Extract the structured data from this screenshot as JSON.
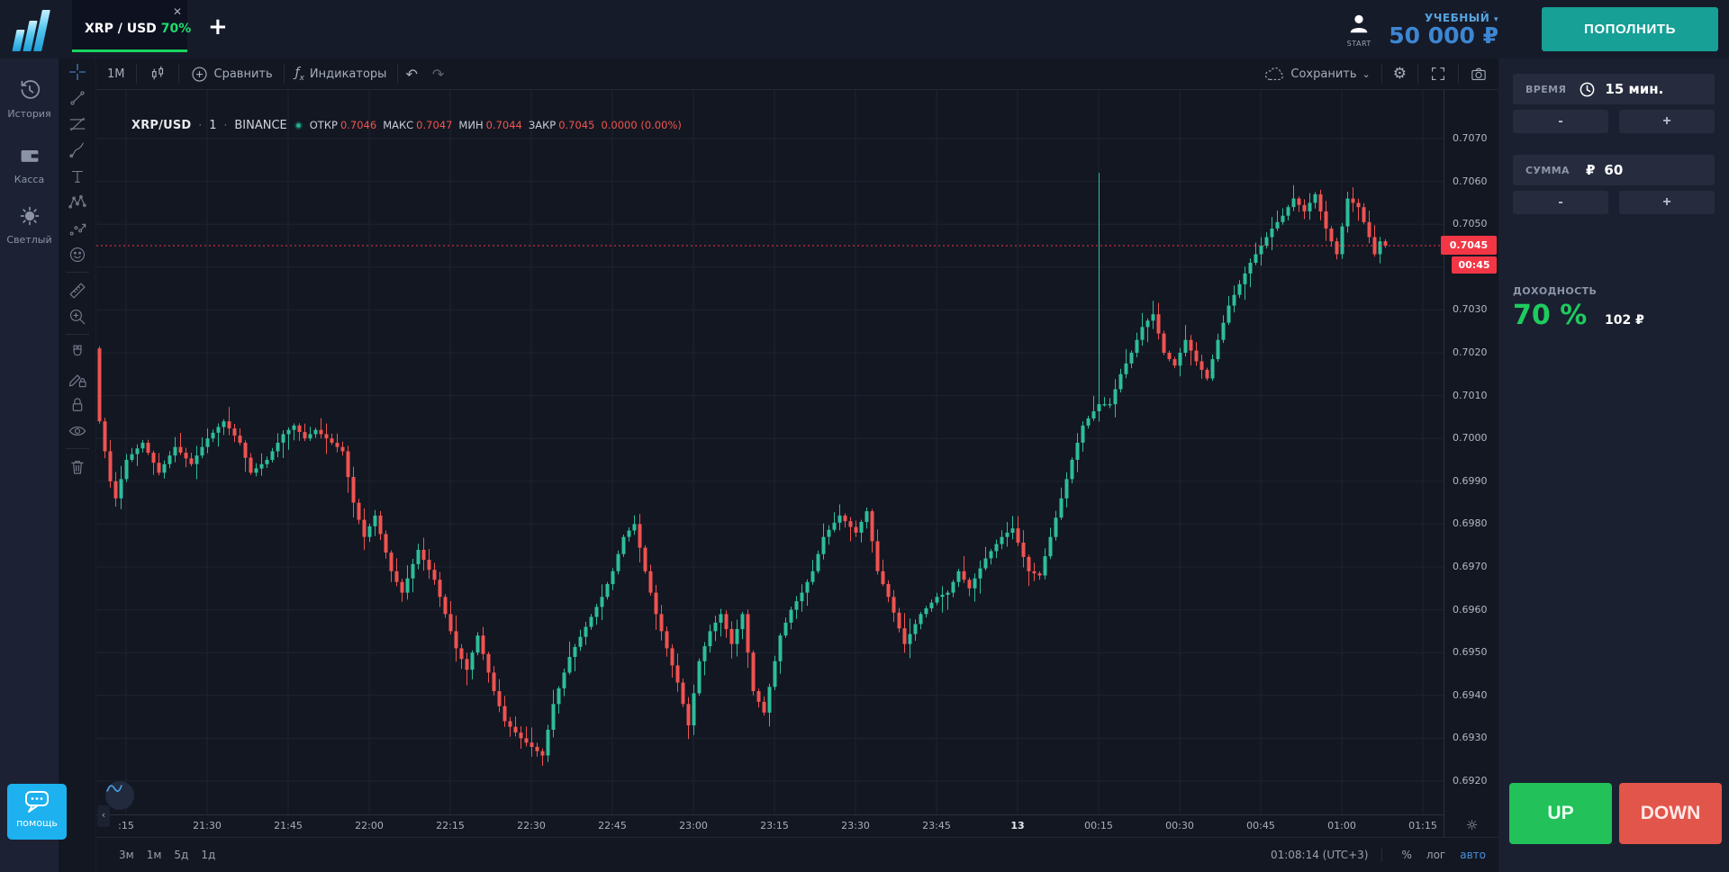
{
  "header": {
    "tab": {
      "symbol": "XRP / USD",
      "payout": "70%",
      "close": "✕"
    },
    "add_tab": "+",
    "account": {
      "avatar_label": "START",
      "type": "УЧЕБНЫЙ",
      "caret": "▾",
      "balance": "50 000 ₽"
    },
    "deposit_button": "ПОПОЛНИТЬ"
  },
  "sidebar": {
    "items": [
      {
        "label": "История",
        "icon": "history-icon"
      },
      {
        "label": "Касса",
        "icon": "wallet-icon"
      },
      {
        "label": "Светлый",
        "icon": "theme-icon"
      }
    ],
    "help": {
      "label": "помощь",
      "icon": "chat-icon"
    }
  },
  "chart": {
    "toolbar": {
      "interval": "1М",
      "compare": "Сравнить",
      "indicators": "Индикаторы",
      "undo": "↶",
      "redo": "↷",
      "save": "Сохранить",
      "save_caret": "⌄",
      "gear": "⚙"
    },
    "drawing_tools": [
      "crosshair",
      "trend-line",
      "fib-retracement",
      "brush",
      "text",
      "xabcd-pattern",
      "forecast",
      "emoji",
      "|",
      "ruler",
      "zoom-in",
      "|",
      "magnet",
      "drawing-lock",
      "lock",
      "eye",
      "|",
      "trash"
    ],
    "legend": {
      "symbol": "XRP/USD",
      "sep": "·",
      "interval": "1",
      "exchange": "BINANCE",
      "ohlc": {
        "o_label": "ОТКР",
        "o": "0.7046",
        "h_label": "МАКС",
        "h": "0.7047",
        "l_label": "МИН",
        "l": "0.7044",
        "c_label": "ЗАКР",
        "c": "0.7045",
        "change": "0.0000 (0.00%)"
      }
    },
    "collapse_arrow": "‹",
    "axis_gear": "☼",
    "bottom_bar": {
      "ranges": [
        "3м",
        "1м",
        "5д",
        "1д"
      ],
      "clock": "01:08:14 (UTC+3)",
      "percent": "%",
      "log": "лог",
      "auto": "авто"
    }
  },
  "trade_panel": {
    "time": {
      "label": "ВРЕМЯ",
      "value": "15 мин."
    },
    "amount": {
      "label": "СУММА",
      "currency": "₽",
      "value": "60"
    },
    "stepper": {
      "minus": "-",
      "plus": "+"
    },
    "payout": {
      "label": "ДОХОДНОСТЬ",
      "percent": "70 %",
      "profit": "102 ₽"
    },
    "up": "UP",
    "down": "DOWN"
  },
  "chart_data": {
    "type": "candlestick",
    "symbol": "XRP/USD",
    "exchange": "BINANCE",
    "interval_minutes": 1,
    "title": "XRP/USD · 1 · BINANCE",
    "time_ticks": [
      ":15",
      "21:30",
      "21:45",
      "22:00",
      "22:15",
      "22:30",
      "22:45",
      "23:00",
      "23:15",
      "23:30",
      "23:45",
      "13",
      "00:15",
      "00:30",
      "00:45",
      "01:00",
      "01:15"
    ],
    "price_ticks": [
      "0.7070",
      "0.7060",
      "0.7050",
      "0.7040",
      "0.7030",
      "0.7020",
      "0.7010",
      "0.7000",
      "0.6990",
      "0.6980",
      "0.6970",
      "0.6960",
      "0.6950",
      "0.6940",
      "0.6930",
      "0.6920"
    ],
    "ylim": [
      0.692,
      0.707
    ],
    "grid_step": 0.001,
    "current_price": 0.7045,
    "current_price_label": "0.7045",
    "countdown": "00:45",
    "start_time": "21:10",
    "end_time": "01:08",
    "candle_count": 239,
    "first_open": 0.7021,
    "spike": {
      "minute_index": 185,
      "high": 0.7062
    },
    "up_color": "#2ebd9b",
    "down_color": "#ef5350",
    "grid_color": "#1d2330",
    "price_line_color": "#f23645",
    "close_anchors": [
      [
        0,
        0.7004
      ],
      [
        2,
        0.699
      ],
      [
        3,
        0.6986
      ],
      [
        5,
        0.6995
      ],
      [
        8,
        0.6999
      ],
      [
        11,
        0.6992
      ],
      [
        14,
        0.6998
      ],
      [
        17,
        0.6994
      ],
      [
        20,
        0.7
      ],
      [
        23,
        0.7004
      ],
      [
        26,
        0.6999
      ],
      [
        28,
        0.6992
      ],
      [
        31,
        0.6995
      ],
      [
        34,
        0.7001
      ],
      [
        36,
        0.7003
      ],
      [
        38,
        0.7
      ],
      [
        40,
        0.7002
      ],
      [
        43,
        0.6999
      ],
      [
        45,
        0.6997
      ],
      [
        47,
        0.6985
      ],
      [
        49,
        0.6977
      ],
      [
        51,
        0.6982
      ],
      [
        54,
        0.6969
      ],
      [
        56,
        0.6964
      ],
      [
        59,
        0.6974
      ],
      [
        62,
        0.6967
      ],
      [
        64,
        0.6959
      ],
      [
        66,
        0.6951
      ],
      [
        68,
        0.6946
      ],
      [
        70,
        0.6954
      ],
      [
        73,
        0.6941
      ],
      [
        75,
        0.6934
      ],
      [
        78,
        0.693
      ],
      [
        80,
        0.6928
      ],
      [
        82,
        0.6926
      ],
      [
        84,
        0.6938
      ],
      [
        87,
        0.6949
      ],
      [
        90,
        0.6956
      ],
      [
        93,
        0.6963
      ],
      [
        95,
        0.6969
      ],
      [
        97,
        0.6977
      ],
      [
        99,
        0.698
      ],
      [
        101,
        0.6969
      ],
      [
        103,
        0.6959
      ],
      [
        105,
        0.6951
      ],
      [
        107,
        0.6943
      ],
      [
        109,
        0.6933
      ],
      [
        111,
        0.6948
      ],
      [
        113,
        0.6955
      ],
      [
        115,
        0.6959
      ],
      [
        117,
        0.6952
      ],
      [
        119,
        0.6959
      ],
      [
        121,
        0.6941
      ],
      [
        123,
        0.6936
      ],
      [
        126,
        0.6954
      ],
      [
        128,
        0.696
      ],
      [
        130,
        0.6964
      ],
      [
        132,
        0.6969
      ],
      [
        134,
        0.6977
      ],
      [
        137,
        0.6982
      ],
      [
        140,
        0.6978
      ],
      [
        142,
        0.6983
      ],
      [
        144,
        0.6969
      ],
      [
        146,
        0.6963
      ],
      [
        149,
        0.6952
      ],
      [
        152,
        0.6959
      ],
      [
        155,
        0.6963
      ],
      [
        157,
        0.6964
      ],
      [
        159,
        0.6969
      ],
      [
        161,
        0.6965
      ],
      [
        164,
        0.6972
      ],
      [
        167,
        0.6977
      ],
      [
        169,
        0.6979
      ],
      [
        172,
        0.6969
      ],
      [
        174,
        0.6968
      ],
      [
        176,
        0.6977
      ],
      [
        178,
        0.6986
      ],
      [
        180,
        0.6995
      ],
      [
        182,
        0.7003
      ],
      [
        185,
        0.7008
      ],
      [
        187,
        0.7008
      ],
      [
        189,
        0.7015
      ],
      [
        191,
        0.702
      ],
      [
        193,
        0.7026
      ],
      [
        195,
        0.7029
      ],
      [
        197,
        0.702
      ],
      [
        199,
        0.7017
      ],
      [
        201,
        0.7023
      ],
      [
        203,
        0.7018
      ],
      [
        205,
        0.7014
      ],
      [
        207,
        0.7023
      ],
      [
        209,
        0.7031
      ],
      [
        211,
        0.7036
      ],
      [
        213,
        0.7041
      ],
      [
        215,
        0.7045
      ],
      [
        217,
        0.7049
      ],
      [
        219,
        0.7052
      ],
      [
        221,
        0.7056
      ],
      [
        223,
        0.7053
      ],
      [
        225,
        0.7057
      ],
      [
        227,
        0.7049
      ],
      [
        229,
        0.7043
      ],
      [
        231,
        0.7056
      ],
      [
        233,
        0.7054
      ],
      [
        235,
        0.7047
      ],
      [
        236,
        0.7043
      ],
      [
        237,
        0.7046
      ],
      [
        238,
        0.7045
      ]
    ]
  }
}
